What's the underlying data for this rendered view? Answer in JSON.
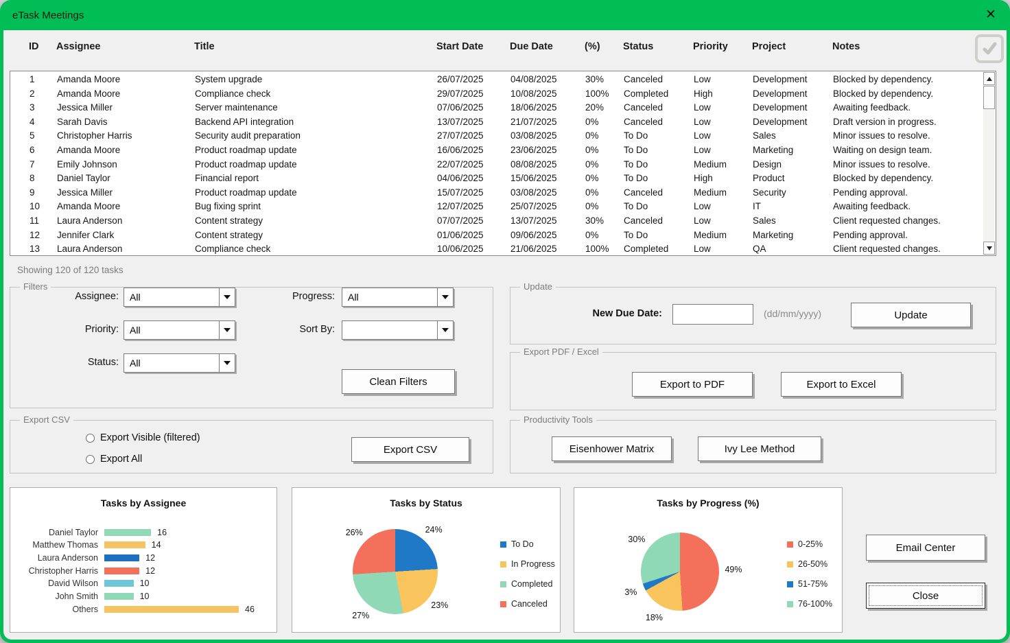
{
  "window": {
    "title": "eTask Meetings",
    "close_label": "✕"
  },
  "colors": {
    "accent_green": "#00BE55",
    "dialog_bg": "#F0F0F0"
  },
  "table": {
    "columns": [
      "ID",
      "Assignee",
      "Title",
      "Start Date",
      "Due Date",
      "(%)",
      "Status",
      "Priority",
      "Project",
      "Notes"
    ],
    "rows": [
      [
        "1",
        "Amanda Moore",
        "System upgrade",
        "26/07/2025",
        "04/08/2025",
        "30%",
        "Canceled",
        "Low",
        "Development",
        "Blocked by dependency."
      ],
      [
        "2",
        "Amanda Moore",
        "Compliance check",
        "29/07/2025",
        "10/08/2025",
        "100%",
        "Completed",
        "High",
        "Development",
        "Blocked by dependency."
      ],
      [
        "3",
        "Jessica Miller",
        "Server maintenance",
        "07/06/2025",
        "18/06/2025",
        "20%",
        "Canceled",
        "Low",
        "Development",
        "Awaiting feedback."
      ],
      [
        "4",
        "Sarah Davis",
        "Backend API integration",
        "13/07/2025",
        "21/07/2025",
        "0%",
        "Canceled",
        "Low",
        "Development",
        "Draft version in progress."
      ],
      [
        "5",
        "Christopher Harris",
        "Security audit preparation",
        "27/07/2025",
        "03/08/2025",
        "0%",
        "To Do",
        "Low",
        "Sales",
        "Minor issues to resolve."
      ],
      [
        "6",
        "Amanda Moore",
        "Product roadmap update",
        "16/06/2025",
        "23/06/2025",
        "0%",
        "To Do",
        "Low",
        "Marketing",
        "Waiting on design team."
      ],
      [
        "7",
        "Emily Johnson",
        "Product roadmap update",
        "22/07/2025",
        "08/08/2025",
        "0%",
        "To Do",
        "Medium",
        "Design",
        "Minor issues to resolve."
      ],
      [
        "8",
        "Daniel Taylor",
        "Financial report",
        "04/06/2025",
        "15/06/2025",
        "0%",
        "To Do",
        "High",
        "Product",
        "Blocked by dependency."
      ],
      [
        "9",
        "Jessica Miller",
        "Product roadmap update",
        "15/07/2025",
        "03/08/2025",
        "0%",
        "Canceled",
        "Medium",
        "Security",
        "Pending approval."
      ],
      [
        "10",
        "Amanda Moore",
        "Bug fixing sprint",
        "12/07/2025",
        "25/07/2025",
        "0%",
        "To Do",
        "Low",
        "IT",
        "Awaiting feedback."
      ],
      [
        "11",
        "Laura Anderson",
        "Content strategy",
        "07/07/2025",
        "13/07/2025",
        "30%",
        "Canceled",
        "Low",
        "Sales",
        "Client requested changes."
      ],
      [
        "12",
        "Jennifer Clark",
        "Content strategy",
        "01/06/2025",
        "09/06/2025",
        "0%",
        "To Do",
        "Medium",
        "Marketing",
        "Pending approval."
      ],
      [
        "13",
        "Laura Anderson",
        "Compliance check",
        "10/06/2025",
        "21/06/2025",
        "100%",
        "Completed",
        "Low",
        "QA",
        "Client requested changes."
      ]
    ]
  },
  "status_text": "Showing 120 of 120 tasks",
  "filters": {
    "legend": "Filters",
    "assignee_label": "Assignee:",
    "assignee_value": "All",
    "priority_label": "Priority:",
    "priority_value": "All",
    "status_label": "Status:",
    "status_value": "All",
    "progress_label": "Progress:",
    "progress_value": "All",
    "sortby_label": "Sort By:",
    "sortby_value": "",
    "clean_button": "Clean Filters"
  },
  "update": {
    "legend": "Update",
    "date_label": "New Due Date:",
    "date_value": "",
    "date_hint": "(dd/mm/yyyy)",
    "button": "Update"
  },
  "export_pdf_excel": {
    "legend": "Export PDF / Excel",
    "pdf_button": "Export to PDF",
    "excel_button": "Export to Excel"
  },
  "export_csv": {
    "legend": "Export CSV",
    "radio_visible": "Export Visible (filtered)",
    "radio_all": "Export All",
    "button": "Export CSV"
  },
  "productivity": {
    "legend": "Productivity Tools",
    "eisenhower_button": "Eisenhower Matrix",
    "ivylee_button": "Ivy Lee Method"
  },
  "actions": {
    "email_button": "Email Center",
    "close_button": "Close"
  },
  "chart_data": [
    {
      "type": "bar",
      "orientation": "horizontal",
      "title": "Tasks by Assignee",
      "categories": [
        "Daniel Taylor",
        "Matthew Thomas",
        "Laura Anderson",
        "Christopher Harris",
        "David Wilson",
        "John Smith",
        "Others"
      ],
      "values": [
        16,
        14,
        12,
        12,
        10,
        10,
        46
      ],
      "colors": [
        "#8FD9B6",
        "#F7C360",
        "#1F6FC0",
        "#F4705B",
        "#6EC6DC",
        "#8FD9B6",
        "#F7C360"
      ],
      "xlim": [
        0,
        46
      ],
      "grid": false,
      "value_labels": true
    },
    {
      "type": "pie",
      "title": "Tasks by Status",
      "labels": [
        "To Do",
        "In Progress",
        "Completed",
        "Canceled"
      ],
      "values_pct": [
        24,
        23,
        27,
        26
      ],
      "colors": [
        "#2079C7",
        "#F9C45C",
        "#8FD9B6",
        "#F4705B"
      ],
      "legend_position": "right",
      "start_angle_deg": 0,
      "direction": "clockwise"
    },
    {
      "type": "pie",
      "title": "Tasks by Progress (%)",
      "labels": [
        "0-25%",
        "26-50%",
        "51-75%",
        "76-100%"
      ],
      "values_pct": [
        49,
        18,
        3,
        30
      ],
      "colors": [
        "#F4705B",
        "#F9C45C",
        "#2079C7",
        "#8FD9B6"
      ],
      "legend_position": "right",
      "start_angle_deg": 0,
      "direction": "clockwise"
    }
  ]
}
